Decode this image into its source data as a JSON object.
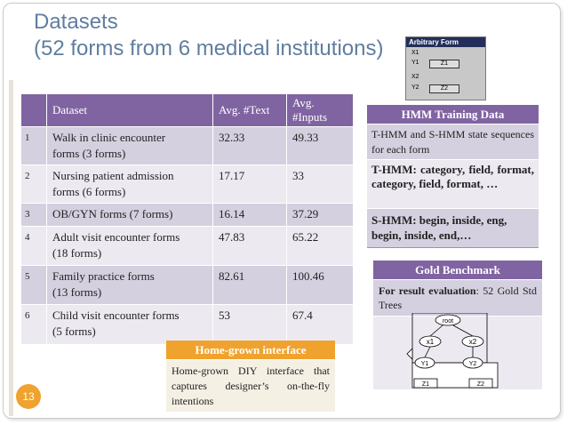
{
  "slide": {
    "title_line1": "Datasets",
    "title_line2": "(52 forms from 6 medical institutions)",
    "page_number": "13"
  },
  "table": {
    "headers": [
      "",
      "Dataset",
      "Avg. #Text",
      "Avg. #Inputs"
    ],
    "rows": [
      {
        "num": "1",
        "dataset_l1": "Walk in clinic encounter",
        "dataset_l2": "forms (3 forms)",
        "avg_text": "32.33",
        "avg_inputs": "49.33"
      },
      {
        "num": "2",
        "dataset_l1": "Nursing patient admission",
        "dataset_l2": "forms (6 forms)",
        "avg_text": "17.17",
        "avg_inputs": "33"
      },
      {
        "num": "3",
        "dataset_l1": "OB/GYN forms (7 forms)",
        "dataset_l2": "",
        "avg_text": "16.14",
        "avg_inputs": "37.29"
      },
      {
        "num": "4",
        "dataset_l1": "Adult visit encounter forms",
        "dataset_l2": "(18 forms)",
        "avg_text": "47.83",
        "avg_inputs": "65.22"
      },
      {
        "num": "5",
        "dataset_l1": "Family practice forms",
        "dataset_l2": "(13 forms)",
        "avg_text": "82.61",
        "avg_inputs": "100.46"
      },
      {
        "num": "6",
        "dataset_l1": "Child visit encounter forms",
        "dataset_l2": "(5 forms)",
        "avg_text": "53",
        "avg_inputs": "67.4"
      }
    ]
  },
  "arbitrary_form": {
    "title": "Arbitrary Form",
    "x1": "X1",
    "y1": "Y1",
    "z1": "Z1",
    "x2": "X2",
    "y2": "Y2",
    "z2": "Z2"
  },
  "hmm": {
    "heading": "HMM Training Data",
    "desc": "T-HMM and S-HMM state sequences for each form",
    "thmm": "T-HMM: category, field, format, category, field, format, …",
    "shmm": "S-HMM: begin, inside, eng, begin, inside, end,…"
  },
  "gold": {
    "heading": "Gold Benchmark",
    "label": "For result evaluation",
    "text": ": 52 Gold Std Trees",
    "tree": {
      "root": "root",
      "x1": "x1",
      "x2": "x2",
      "y1": "Y1",
      "y2": "Y2",
      "z1": "Z1",
      "z2": "Z2"
    }
  },
  "home": {
    "heading": "Home-grown interface",
    "text": "Home-grown DIY interface that captures designer’s on-the-fly intentions"
  },
  "colors": {
    "title": "#5f7e9f",
    "purple": "#8064a2",
    "orange": "#f0a22e",
    "navy": "#232f5a"
  }
}
